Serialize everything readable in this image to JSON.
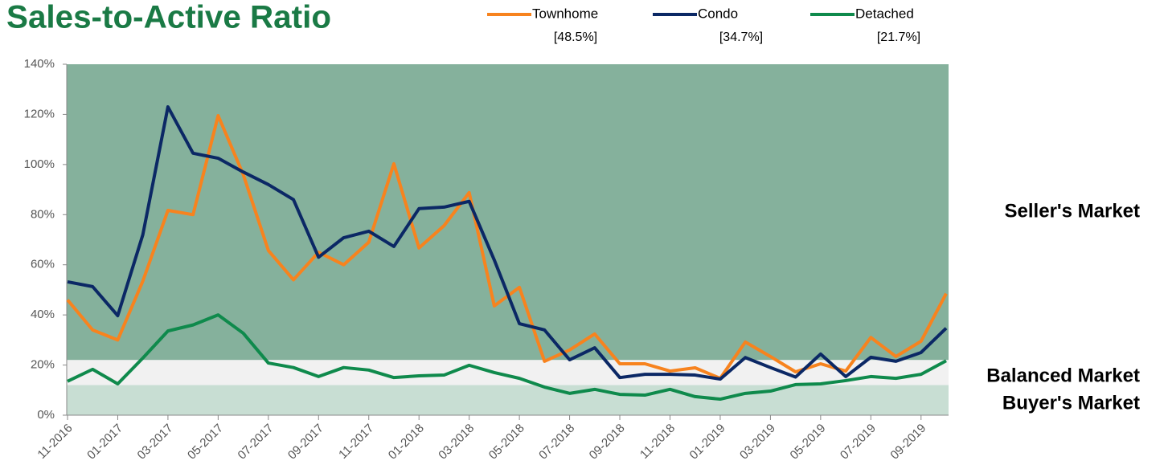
{
  "chart_data": {
    "type": "line",
    "title": "Sales-to-Active Ratio",
    "categories": [
      "11-2016",
      null,
      "01-2017",
      null,
      "03-2017",
      null,
      "05-2017",
      null,
      "07-2017",
      null,
      "09-2017",
      null,
      "11-2017",
      null,
      "01-2018",
      null,
      "03-2018",
      null,
      "05-2018",
      null,
      "07-2018",
      null,
      "09-2018",
      null,
      "11-2018",
      null,
      "01-2019",
      null,
      "03-2019",
      null,
      "05-2019",
      null,
      "07-2019",
      null,
      "09-2019",
      null
    ],
    "series": [
      {
        "name": "Townhome",
        "legend_note": "[48.5%]",
        "color": "#f7831e",
        "values": [
          46,
          34,
          30,
          53.5,
          81.7,
          80,
          119.5,
          96,
          65.7,
          54,
          65,
          60,
          69,
          100.3,
          66.7,
          75.6,
          88.8,
          43.6,
          51,
          21.5,
          26,
          32.4,
          20.5,
          20.5,
          17.6,
          18.9,
          14.7,
          29.2,
          23.4,
          17.3,
          20.5,
          17.6,
          31,
          23.4,
          29.5,
          48.5
        ]
      },
      {
        "name": "Condo",
        "legend_note": "[34.7%]",
        "color": "#0b2865",
        "values": [
          53.2,
          51.3,
          39.7,
          72,
          123,
          104.5,
          102.5,
          97,
          92,
          86,
          63,
          70.8,
          73.4,
          67.3,
          82.4,
          83,
          85.3,
          61.9,
          36.5,
          34,
          22.1,
          26.9,
          15,
          16.3,
          16.3,
          16,
          14.4,
          23,
          19,
          15.2,
          24.4,
          15.4,
          23.1,
          21.5,
          25,
          34.7
        ]
      },
      {
        "name": "Detached",
        "legend_note": "[21.7%]",
        "color": "#0f8a4c",
        "values": [
          13.5,
          18.3,
          12.5,
          22.8,
          33.6,
          36,
          40,
          32.7,
          20.8,
          19,
          15.4,
          19,
          18,
          15,
          15.7,
          16,
          19.9,
          17,
          14.7,
          11.2,
          8.7,
          10.3,
          8.3,
          8,
          10.3,
          7.4,
          6.4,
          8.7,
          9.6,
          12.2,
          12.5,
          13.8,
          15.4,
          14.7,
          16.3,
          21.7
        ]
      }
    ],
    "regions": [
      {
        "label": "Seller's Market",
        "from": 22,
        "to": 140,
        "color": "#85b19c"
      },
      {
        "label": "Balanced Market",
        "from": 12,
        "to": 22,
        "color": "#f1f1f1"
      },
      {
        "label": "Buyer's Market",
        "from": 0,
        "to": 12,
        "color": "#c8ded3"
      }
    ],
    "ylim": [
      0,
      140
    ],
    "yticks": [
      {
        "value": 0,
        "label": "0%"
      },
      {
        "value": 20,
        "label": "20%"
      },
      {
        "value": 40,
        "label": "40%"
      },
      {
        "value": 60,
        "label": "60%"
      },
      {
        "value": 80,
        "label": "80%"
      },
      {
        "value": 100,
        "label": "100%"
      },
      {
        "value": 120,
        "label": "120%"
      },
      {
        "value": 140,
        "label": "140%"
      }
    ],
    "legend": "top"
  }
}
